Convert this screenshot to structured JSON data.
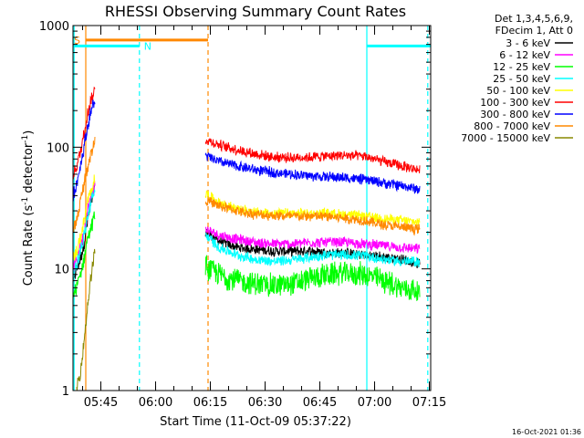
{
  "chart_data": {
    "type": "line",
    "title": "RHESSI Observing Summary Count Rates",
    "xlabel": "Start Time (11-Oct-09 05:37:22)",
    "ylabel_parts": [
      "Count Rate (s",
      "-1",
      " detector",
      "-1",
      ")"
    ],
    "y_scale": "log",
    "ylim": [
      1,
      1000
    ],
    "y_ticks": [
      {
        "value": 1,
        "label": "1"
      },
      {
        "value": 10,
        "label": "10"
      },
      {
        "value": 100,
        "label": "100"
      },
      {
        "value": 1000,
        "label": "1000"
      }
    ],
    "x_range_minutes": [
      0,
      98
    ],
    "x_ticks": [
      {
        "value": 7.63,
        "label": "05:45"
      },
      {
        "value": 22.63,
        "label": "06:00"
      },
      {
        "value": 37.63,
        "label": "06:15"
      },
      {
        "value": 52.63,
        "label": "06:30"
      },
      {
        "value": 67.63,
        "label": "06:45"
      },
      {
        "value": 82.63,
        "label": "07:00"
      },
      {
        "value": 97.63,
        "label": "07:15"
      }
    ],
    "legend": {
      "position": "top-right",
      "header": [
        "Det 1,3,4,5,6,9,",
        "FDecim 1, Att 0"
      ]
    },
    "gap_minutes": [
      6.0,
      36.3
    ],
    "series": [
      {
        "name": "3 - 6 keV",
        "color": "#000000",
        "pre_gap": [
          [
            0.0,
            8
          ],
          [
            1.0,
            10
          ],
          [
            2.0,
            12
          ],
          [
            3.0,
            16
          ],
          [
            4.0,
            25
          ],
          [
            5.0,
            35
          ],
          [
            6.0,
            45
          ]
        ],
        "post_gap": [
          [
            36.3,
            20
          ],
          [
            40.0,
            17
          ],
          [
            45.0,
            15
          ],
          [
            50.0,
            14.5
          ],
          [
            55.0,
            14
          ],
          [
            60.0,
            14
          ],
          [
            65.0,
            14
          ],
          [
            70.0,
            13.5
          ],
          [
            75.0,
            13.5
          ],
          [
            80.0,
            13
          ],
          [
            85.0,
            12.5
          ],
          [
            90.0,
            12
          ],
          [
            95.0,
            11
          ]
        ]
      },
      {
        "name": "6 - 12 keV",
        "color": "#ff00ff",
        "pre_gap": [
          [
            0.0,
            10
          ],
          [
            1.0,
            12
          ],
          [
            2.0,
            15
          ],
          [
            3.0,
            20
          ],
          [
            4.0,
            30
          ],
          [
            5.0,
            40
          ],
          [
            6.0,
            50
          ]
        ],
        "post_gap": [
          [
            36.3,
            21
          ],
          [
            40.0,
            19
          ],
          [
            45.0,
            17.5
          ],
          [
            50.0,
            16.5
          ],
          [
            55.0,
            16
          ],
          [
            60.0,
            16
          ],
          [
            65.0,
            16.5
          ],
          [
            70.0,
            16.5
          ],
          [
            75.0,
            16.5
          ],
          [
            80.0,
            16
          ],
          [
            85.0,
            15.5
          ],
          [
            90.0,
            15
          ],
          [
            95.0,
            14.5
          ]
        ]
      },
      {
        "name": "12 - 25 keV",
        "color": "#00ff00",
        "pre_gap": [
          [
            0.0,
            6
          ],
          [
            1.0,
            7
          ],
          [
            2.0,
            9
          ],
          [
            3.0,
            12
          ],
          [
            4.0,
            18
          ],
          [
            5.0,
            22
          ],
          [
            6.0,
            28
          ]
        ],
        "post_gap": [
          [
            36.3,
            10.5
          ],
          [
            40.0,
            9
          ],
          [
            45.0,
            8
          ],
          [
            50.0,
            7.5
          ],
          [
            55.0,
            7.3
          ],
          [
            60.0,
            7.5
          ],
          [
            65.0,
            8.3
          ],
          [
            70.0,
            9
          ],
          [
            75.0,
            9.2
          ],
          [
            80.0,
            9
          ],
          [
            85.0,
            8
          ],
          [
            90.0,
            7
          ],
          [
            95.0,
            6.5
          ]
        ]
      },
      {
        "name": "25 - 50 keV",
        "color": "#00ffff",
        "pre_gap": [
          [
            0.0,
            9
          ],
          [
            1.0,
            11
          ],
          [
            2.0,
            14
          ],
          [
            3.0,
            18
          ],
          [
            4.0,
            27
          ],
          [
            5.0,
            36
          ],
          [
            6.0,
            44
          ]
        ],
        "post_gap": [
          [
            36.3,
            19
          ],
          [
            40.0,
            15
          ],
          [
            45.0,
            13
          ],
          [
            50.0,
            12
          ],
          [
            55.0,
            11.5
          ],
          [
            60.0,
            11.8
          ],
          [
            65.0,
            12.5
          ],
          [
            70.0,
            13
          ],
          [
            75.0,
            13
          ],
          [
            80.0,
            12.8
          ],
          [
            85.0,
            12
          ],
          [
            90.0,
            11.5
          ],
          [
            95.0,
            11.5
          ]
        ]
      },
      {
        "name": "50 - 100 keV",
        "color": "#ffff00",
        "pre_gap": [
          [
            0.0,
            12
          ],
          [
            1.0,
            14
          ],
          [
            2.0,
            18
          ],
          [
            3.0,
            24
          ],
          [
            4.0,
            35
          ],
          [
            5.0,
            45
          ],
          [
            6.0,
            55
          ]
        ],
        "post_gap": [
          [
            36.3,
            42
          ],
          [
            40.0,
            35
          ],
          [
            45.0,
            31
          ],
          [
            50.0,
            29
          ],
          [
            55.0,
            28.5
          ],
          [
            60.0,
            28.5
          ],
          [
            65.0,
            28.5
          ],
          [
            70.0,
            28.5
          ],
          [
            75.0,
            28
          ],
          [
            80.0,
            27
          ],
          [
            85.0,
            26
          ],
          [
            90.0,
            25
          ],
          [
            95.0,
            24
          ]
        ]
      },
      {
        "name": "100 - 300 keV",
        "color": "#ff0000",
        "pre_gap": [
          [
            0.0,
            60
          ],
          [
            1.0,
            70
          ],
          [
            2.0,
            90
          ],
          [
            3.0,
            130
          ],
          [
            4.0,
            190
          ],
          [
            5.0,
            250
          ],
          [
            6.0,
            290
          ]
        ],
        "post_gap": [
          [
            36.3,
            115
          ],
          [
            40.0,
            105
          ],
          [
            45.0,
            95
          ],
          [
            50.0,
            88
          ],
          [
            55.0,
            83
          ],
          [
            60.0,
            82
          ],
          [
            65.0,
            83
          ],
          [
            70.0,
            85
          ],
          [
            75.0,
            86
          ],
          [
            80.0,
            84
          ],
          [
            85.0,
            76
          ],
          [
            90.0,
            70
          ],
          [
            95.0,
            65
          ]
        ]
      },
      {
        "name": "300 - 800 keV",
        "color": "#0000ff",
        "pre_gap": [
          [
            0.0,
            40
          ],
          [
            1.0,
            50
          ],
          [
            2.0,
            70
          ],
          [
            3.0,
            100
          ],
          [
            4.0,
            150
          ],
          [
            5.0,
            200
          ],
          [
            6.0,
            240
          ]
        ],
        "post_gap": [
          [
            36.3,
            85
          ],
          [
            40.0,
            76
          ],
          [
            45.0,
            70
          ],
          [
            50.0,
            65
          ],
          [
            55.0,
            62
          ],
          [
            60.0,
            60
          ],
          [
            65.0,
            58
          ],
          [
            70.0,
            57
          ],
          [
            75.0,
            56
          ],
          [
            80.0,
            54
          ],
          [
            85.0,
            51
          ],
          [
            90.0,
            48
          ],
          [
            95.0,
            45
          ]
        ]
      },
      {
        "name": "800 - 7000 keV",
        "color": "#ff8800",
        "pre_gap": [
          [
            0.0,
            20
          ],
          [
            1.0,
            25
          ],
          [
            2.0,
            35
          ],
          [
            3.0,
            50
          ],
          [
            4.0,
            70
          ],
          [
            5.0,
            90
          ],
          [
            6.0,
            110
          ]
        ],
        "post_gap": [
          [
            36.3,
            37
          ],
          [
            40.0,
            33
          ],
          [
            45.0,
            30
          ],
          [
            50.0,
            28
          ],
          [
            55.0,
            27.5
          ],
          [
            60.0,
            27
          ],
          [
            65.0,
            27
          ],
          [
            70.0,
            27
          ],
          [
            75.0,
            26
          ],
          [
            80.0,
            25
          ],
          [
            85.0,
            23
          ],
          [
            90.0,
            22
          ],
          [
            95.0,
            21
          ]
        ]
      },
      {
        "name": "7000 - 15000 keV",
        "color": "#888800",
        "pre_gap": [
          [
            1.0,
            1.05
          ],
          [
            2.0,
            1.4
          ],
          [
            3.0,
            2.5
          ],
          [
            4.0,
            5
          ],
          [
            5.0,
            9
          ],
          [
            6.0,
            14
          ]
        ],
        "post_gap": []
      }
    ],
    "flags": [
      {
        "label": "S",
        "color": "#ff8800",
        "y": 760,
        "x_start": 3.5,
        "x_end": 37.0
      },
      {
        "label": "N",
        "color": "#00ffff",
        "y": 680,
        "x_start": 0.0,
        "x_end": 18.2
      },
      {
        "label": "",
        "color": "#00ffff",
        "y": 680,
        "x_start": 80.5,
        "x_end": 98.0
      }
    ],
    "vlines": [
      {
        "x": 0.3,
        "color": "#00ffff",
        "dashed": false
      },
      {
        "x": 3.5,
        "color": "#ff8800",
        "dashed": false
      },
      {
        "x": 18.2,
        "color": "#00ffff",
        "dashed": true
      },
      {
        "x": 37.0,
        "color": "#ff8800",
        "dashed": true
      },
      {
        "x": 80.5,
        "color": "#00ffff",
        "dashed": false
      },
      {
        "x": 97.2,
        "color": "#00ffff",
        "dashed": true
      }
    ]
  },
  "footer": {
    "timestamp": "16-Oct-2021 01:36"
  }
}
